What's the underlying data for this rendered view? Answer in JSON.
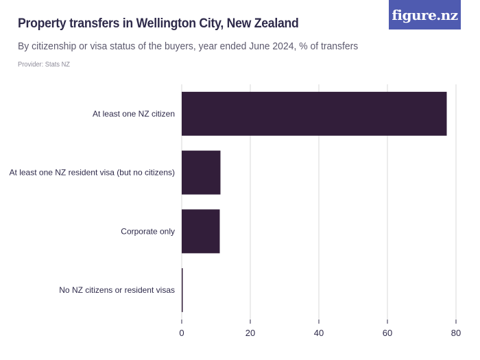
{
  "header": {
    "title": "Property transfers in Wellington City, New Zealand",
    "subtitle": "By citizenship or visa status of the buyers, year ended June 2024, % of transfers",
    "provider": "Provider: Stats NZ"
  },
  "logo": {
    "text": "figure.nz",
    "color": "#4f5bb0"
  },
  "chart_data": {
    "type": "bar",
    "orientation": "horizontal",
    "title": "Property transfers in Wellington City, New Zealand",
    "subtitle": "By citizenship or visa status of the buyers, year ended June 2024, % of transfers",
    "categories": [
      "At least one NZ citizen",
      "At least one NZ resident visa (but no citizens)",
      "Corporate only",
      "No NZ citizens or resident visas"
    ],
    "values": [
      77.3,
      11.3,
      11.1,
      0.3
    ],
    "xlim": [
      0,
      80
    ],
    "xticks": [
      0,
      20,
      40,
      60,
      80
    ],
    "grid": "vertical",
    "bar_color": "#321e3a",
    "grid_color": "#d9d9d9"
  }
}
